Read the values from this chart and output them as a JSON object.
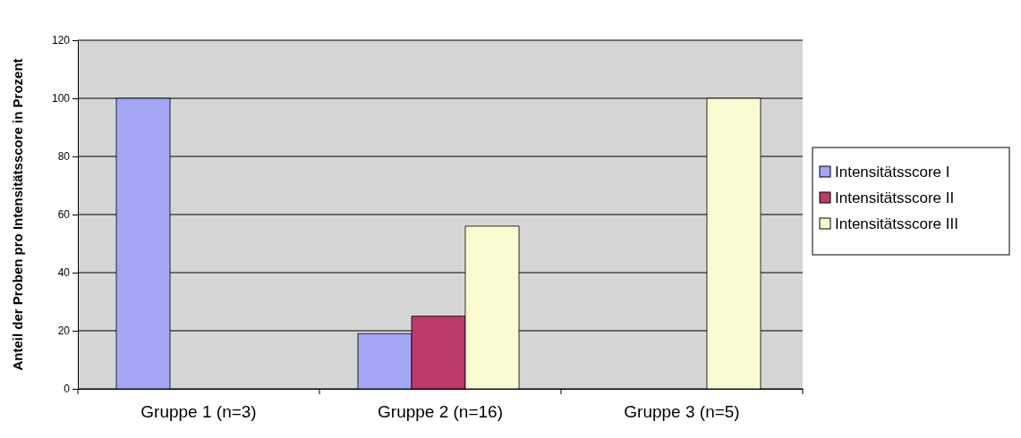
{
  "chart_data": {
    "type": "bar",
    "ylabel": "Anteil der Proben pro Intensitätsscore in Prozent",
    "categories": [
      "Gruppe 1 (n=3)",
      "Gruppe 2 (n=16)",
      "Gruppe 3 (n=5)"
    ],
    "series": [
      {
        "name": "Intensitätsscore I",
        "color": "#a6a6f7",
        "values": [
          100,
          19,
          0
        ]
      },
      {
        "name": "Intensitätsscore II",
        "color": "#bd3a6c",
        "values": [
          0,
          25,
          0
        ]
      },
      {
        "name": "Intensitätsscore III",
        "color": "#fbfbd2",
        "values": [
          0,
          56,
          100
        ]
      }
    ],
    "ylim": [
      0,
      120
    ],
    "yticks": [
      0,
      20,
      40,
      60,
      80,
      100,
      120
    ],
    "grid": "y",
    "legend": "right"
  }
}
